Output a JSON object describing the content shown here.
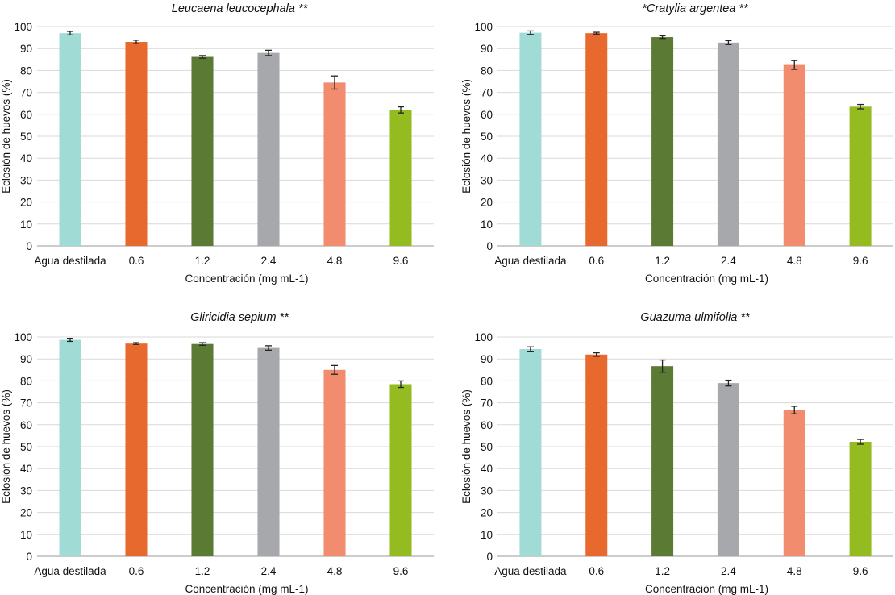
{
  "colors": {
    "series": [
      "#a0dbd6",
      "#e8692d",
      "#5b7a33",
      "#a7a8ac",
      "#f28c6e",
      "#94bc20"
    ],
    "gridline": "#d9d9d9",
    "axis": "#9a9a9a",
    "errorbar": "#222222"
  },
  "chart_data": [
    {
      "type": "bar",
      "title": "Leucaena leucocephala **",
      "categories": [
        "Agua destilada",
        "0.6",
        "1.2",
        "2.4",
        "4.8",
        "9.6"
      ],
      "values": [
        97,
        93,
        86.2,
        88,
        74.5,
        62
      ],
      "errors": [
        0.8,
        0.8,
        0.6,
        1.2,
        3.0,
        1.4
      ],
      "xlabel": "Concentración (mg mL-1)",
      "ylabel": "Eclosión de huevos (%)",
      "ylim": [
        0,
        100
      ],
      "yticks": [
        0,
        10,
        20,
        30,
        40,
        50,
        60,
        70,
        80,
        90,
        100
      ],
      "grid": true,
      "legend": "none"
    },
    {
      "type": "bar",
      "title": "*Cratylia argentea **",
      "categories": [
        "Agua destilada",
        "0.6",
        "1.2",
        "2.4",
        "4.8",
        "9.6"
      ],
      "values": [
        97.2,
        97,
        95.2,
        92.7,
        82.5,
        63.5
      ],
      "errors": [
        0.8,
        0.4,
        0.6,
        0.9,
        2.0,
        1.0
      ],
      "xlabel": "Concentración (mg mL-1)",
      "ylabel": "Eclosión de huevos (%)",
      "ylim": [
        0,
        100
      ],
      "yticks": [
        0,
        10,
        20,
        30,
        40,
        50,
        60,
        70,
        80,
        90,
        100
      ],
      "grid": true,
      "legend": "none"
    },
    {
      "type": "bar",
      "title": "Gliricidia sepium **",
      "categories": [
        "Agua destilada",
        "0.6",
        "1.2",
        "2.4",
        "4.8",
        "9.6"
      ],
      "values": [
        98.7,
        97,
        96.8,
        95,
        85,
        78.5
      ],
      "errors": [
        0.7,
        0.4,
        0.6,
        1.0,
        2.0,
        1.5
      ],
      "xlabel": "Concentración (mg mL-1)",
      "ylabel": "Eclosión de huevos (%)",
      "ylim": [
        0,
        100
      ],
      "yticks": [
        0,
        10,
        20,
        30,
        40,
        50,
        60,
        70,
        80,
        90,
        100
      ],
      "grid": true,
      "legend": "none"
    },
    {
      "type": "bar",
      "title": "Guazuma ulmifolia **",
      "categories": [
        "Agua destilada",
        "0.6",
        "1.2",
        "2.4",
        "4.8",
        "9.6"
      ],
      "values": [
        94.5,
        92,
        86.7,
        79,
        66.7,
        52.2
      ],
      "errors": [
        1.0,
        0.8,
        2.8,
        1.3,
        1.7,
        1.1
      ],
      "xlabel": "Concentración (mg mL-1)",
      "ylabel": "Eclosión de huevos (%)",
      "ylim": [
        0,
        100
      ],
      "yticks": [
        0,
        10,
        20,
        30,
        40,
        50,
        60,
        70,
        80,
        90,
        100
      ],
      "grid": true,
      "legend": "none"
    }
  ]
}
